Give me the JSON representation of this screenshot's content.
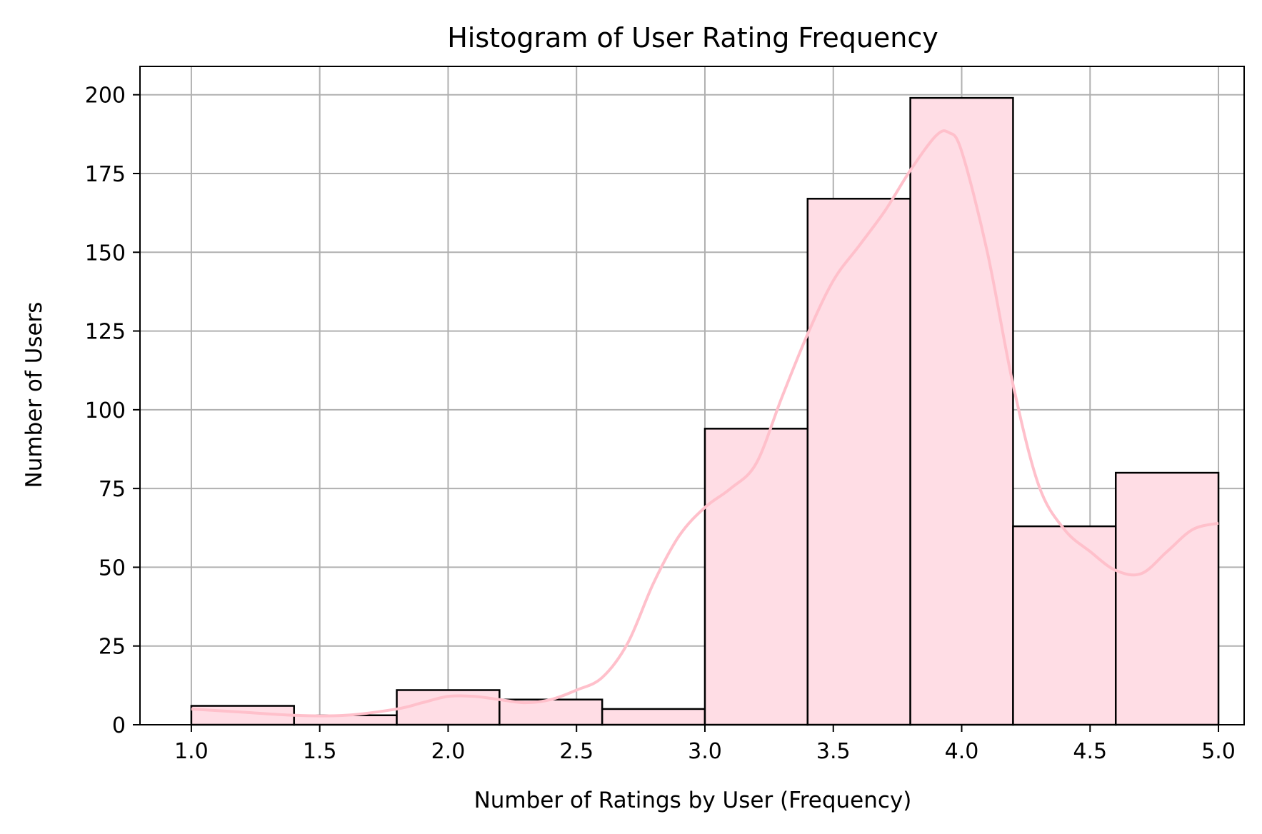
{
  "chart_data": {
    "type": "bar",
    "title": "Histogram of User Rating Frequency",
    "xlabel": "Number of Ratings by User (Frequency)",
    "ylabel": "Number of Users",
    "xlim": [
      0.8,
      5.1
    ],
    "ylim": [
      0,
      209
    ],
    "xticks": [
      "1.0",
      "1.5",
      "2.0",
      "2.5",
      "3.0",
      "3.5",
      "4.0",
      "4.5",
      "5.0"
    ],
    "yticks": [
      "0",
      "25",
      "50",
      "75",
      "100",
      "125",
      "150",
      "175",
      "200"
    ],
    "grid": true,
    "bins": [
      {
        "x0": 1.0,
        "x1": 1.4,
        "count": 6
      },
      {
        "x0": 1.4,
        "x1": 1.8,
        "count": 3
      },
      {
        "x0": 1.8,
        "x1": 2.2,
        "count": 11
      },
      {
        "x0": 2.2,
        "x1": 2.6,
        "count": 8
      },
      {
        "x0": 2.6,
        "x1": 3.0,
        "count": 5
      },
      {
        "x0": 3.0,
        "x1": 3.4,
        "count": 94
      },
      {
        "x0": 3.4,
        "x1": 3.8,
        "count": 167
      },
      {
        "x0": 3.8,
        "x1": 4.2,
        "count": 199
      },
      {
        "x0": 4.2,
        "x1": 4.6,
        "count": 63
      },
      {
        "x0": 4.6,
        "x1": 5.0,
        "count": 80
      }
    ],
    "kde": {
      "x": [
        1.0,
        1.2,
        1.4,
        1.6,
        1.8,
        1.9,
        2.0,
        2.1,
        2.2,
        2.3,
        2.4,
        2.5,
        2.6,
        2.7,
        2.8,
        2.9,
        3.0,
        3.1,
        3.2,
        3.3,
        3.4,
        3.5,
        3.6,
        3.7,
        3.8,
        3.9,
        3.95,
        4.0,
        4.1,
        4.2,
        4.3,
        4.4,
        4.5,
        4.6,
        4.7,
        4.8,
        4.9,
        5.0
      ],
      "y": [
        5,
        4,
        3,
        3,
        5,
        7,
        9,
        9,
        8,
        7,
        8,
        11,
        15,
        26,
        45,
        60,
        69,
        75,
        83,
        104,
        124,
        141,
        152,
        163,
        176,
        187,
        188,
        182,
        150,
        108,
        76,
        62,
        55,
        49,
        48,
        55,
        62,
        64
      ]
    },
    "colors": {
      "bar_fill": "#ffdde5",
      "bar_edge": "#000000",
      "kde_line": "#ffc0cb",
      "grid": "#b0b0b0"
    }
  }
}
